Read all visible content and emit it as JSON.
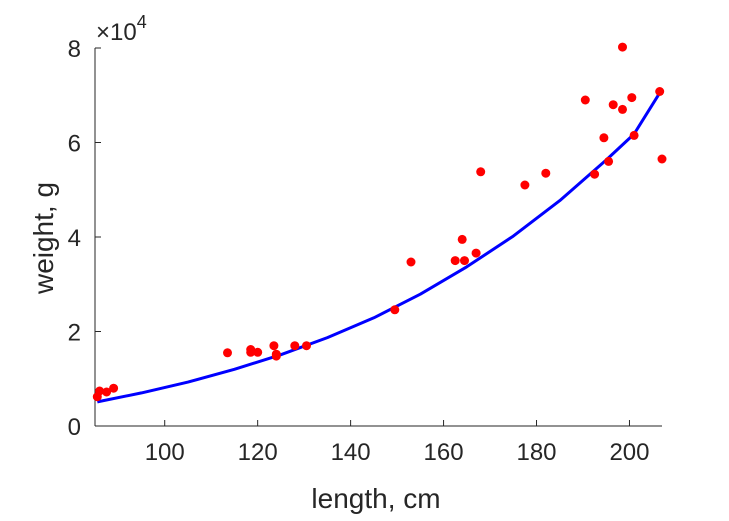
{
  "chart_data": {
    "type": "scatter",
    "title": "",
    "xlabel": "length, cm",
    "ylabel": "weight, g",
    "xlim": [
      85,
      207
    ],
    "ylim": [
      0,
      80000
    ],
    "xticks": [
      100,
      120,
      140,
      160,
      180,
      200
    ],
    "yticks": [
      0,
      20000,
      40000,
      60000,
      80000
    ],
    "ytick_labels": [
      "0",
      "2",
      "4",
      "6",
      "8"
    ],
    "y_exponent_base": "×10",
    "y_exponent_power": "4",
    "grid": false,
    "legend": "none",
    "series": [
      {
        "type": "scatter",
        "color": "#ff0000",
        "points": [
          [
            85.5,
            6200
          ],
          [
            86,
            7400
          ],
          [
            87.5,
            7200
          ],
          [
            89,
            8000
          ],
          [
            113.5,
            15500
          ],
          [
            118.5,
            16200
          ],
          [
            118.5,
            15600
          ],
          [
            120,
            15600
          ],
          [
            123.5,
            17000
          ],
          [
            124,
            15200
          ],
          [
            124,
            14800
          ],
          [
            128,
            17000
          ],
          [
            130.5,
            17000
          ],
          [
            149.5,
            24600
          ],
          [
            153,
            34700
          ],
          [
            162.5,
            35000
          ],
          [
            164,
            39500
          ],
          [
            164.5,
            35000
          ],
          [
            167,
            36600
          ],
          [
            168,
            53800
          ],
          [
            177.5,
            51000
          ],
          [
            182,
            53500
          ],
          [
            190.5,
            69000
          ],
          [
            192.5,
            53300
          ],
          [
            194.5,
            61000
          ],
          [
            195.5,
            56000
          ],
          [
            196.5,
            68000
          ],
          [
            198.5,
            67000
          ],
          [
            198.5,
            80200
          ],
          [
            200.5,
            69500
          ],
          [
            201,
            61500
          ],
          [
            206.5,
            70800
          ],
          [
            207,
            56500
          ]
        ]
      },
      {
        "type": "line",
        "color": "#0000ff",
        "points": [
          [
            85.5,
            5100
          ],
          [
            95,
            7000
          ],
          [
            105,
            9300
          ],
          [
            115,
            12000
          ],
          [
            125,
            15100
          ],
          [
            135,
            18700
          ],
          [
            145,
            22900
          ],
          [
            155,
            27900
          ],
          [
            165,
            33700
          ],
          [
            175,
            40200
          ],
          [
            185,
            47700
          ],
          [
            195,
            56300
          ],
          [
            201,
            61800
          ],
          [
            206.5,
            70500
          ]
        ]
      }
    ]
  }
}
